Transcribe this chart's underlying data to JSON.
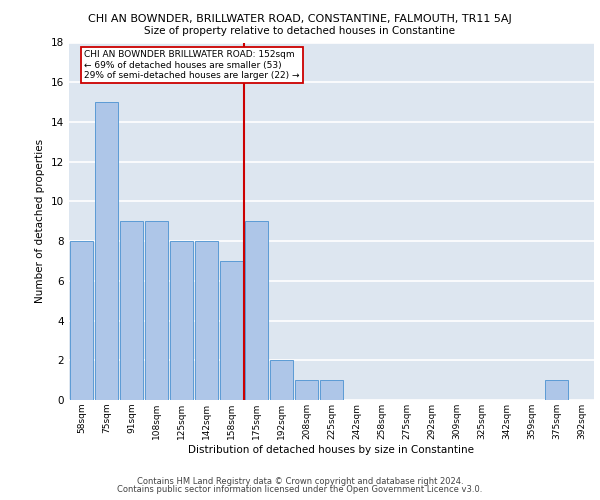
{
  "title_main": "CHI AN BOWNDER, BRILLWATER ROAD, CONSTANTINE, FALMOUTH, TR11 5AJ",
  "title_sub": "Size of property relative to detached houses in Constantine",
  "xlabel": "Distribution of detached houses by size in Constantine",
  "ylabel": "Number of detached properties",
  "categories": [
    "58sqm",
    "75sqm",
    "91sqm",
    "108sqm",
    "125sqm",
    "142sqm",
    "158sqm",
    "175sqm",
    "192sqm",
    "208sqm",
    "225sqm",
    "242sqm",
    "258sqm",
    "275sqm",
    "292sqm",
    "309sqm",
    "325sqm",
    "342sqm",
    "359sqm",
    "375sqm",
    "392sqm"
  ],
  "values": [
    8,
    15,
    9,
    9,
    8,
    8,
    7,
    9,
    2,
    1,
    1,
    0,
    0,
    0,
    0,
    0,
    0,
    0,
    0,
    1,
    0
  ],
  "bar_color": "#aec6e8",
  "bar_edge_color": "#5b9bd5",
  "red_line_index": 6.5,
  "annotation_line1": "CHI AN BOWNDER BRILLWATER ROAD: 152sqm",
  "annotation_line2": "← 69% of detached houses are smaller (53)",
  "annotation_line3": "29% of semi-detached houses are larger (22) →",
  "annotation_box_color": "#ffffff",
  "annotation_box_edge": "#cc0000",
  "ylim": [
    0,
    18
  ],
  "yticks": [
    0,
    2,
    4,
    6,
    8,
    10,
    12,
    14,
    16,
    18
  ],
  "background_color": "#dde6f0",
  "grid_color": "#ffffff",
  "footer_line1": "Contains HM Land Registry data © Crown copyright and database right 2024.",
  "footer_line2": "Contains public sector information licensed under the Open Government Licence v3.0."
}
